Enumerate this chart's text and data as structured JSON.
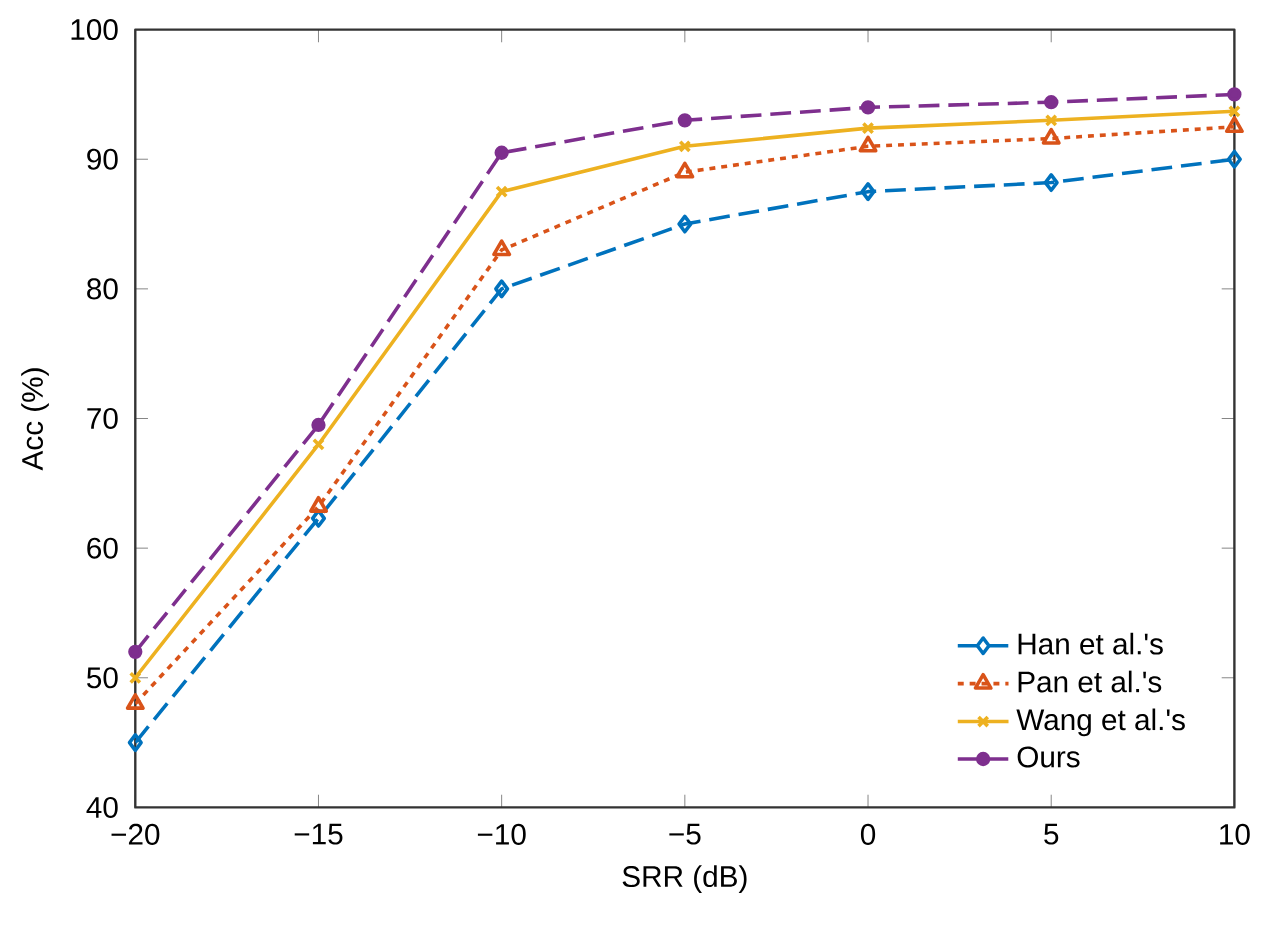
{
  "chart_data": {
    "type": "line",
    "xlabel": "SRR (dB)",
    "ylabel": "Acc (%)",
    "x": [
      -20,
      -15,
      -10,
      -5,
      0,
      5,
      10
    ],
    "series": [
      {
        "name": "Han et al.'s",
        "color": "#0072bd",
        "marker": "diamond",
        "line_style": "dashed",
        "values": [
          45,
          62.3,
          80,
          85,
          87.5,
          88.2,
          90
        ]
      },
      {
        "name": "Pan et al.'s",
        "color": "#d95319",
        "marker": "triangle",
        "line_style": "dotted",
        "values": [
          48,
          63.2,
          83,
          89,
          91,
          91.6,
          92.5
        ]
      },
      {
        "name": "Wang et al.'s",
        "color": "#edb120",
        "marker": "cross",
        "line_style": "solid",
        "values": [
          50,
          68,
          87.5,
          91,
          92.4,
          93,
          93.7
        ]
      },
      {
        "name": "Ours",
        "color": "#7e2f8e",
        "marker": "circle",
        "line_style": "dashed",
        "values": [
          52,
          69.5,
          90.5,
          93,
          94,
          94.4,
          95
        ]
      }
    ],
    "xlim": [
      -20,
      10
    ],
    "xticks": [
      {
        "value": -20,
        "label": "−20"
      },
      {
        "value": -15,
        "label": "−15"
      },
      {
        "value": -10,
        "label": "−10"
      },
      {
        "value": -5,
        "label": "−5"
      },
      0,
      5,
      10
    ],
    "ylim": [
      40,
      100
    ],
    "yticks": [
      40,
      50,
      60,
      70,
      80,
      90,
      100
    ],
    "grid": false,
    "legend": "bottom right"
  }
}
